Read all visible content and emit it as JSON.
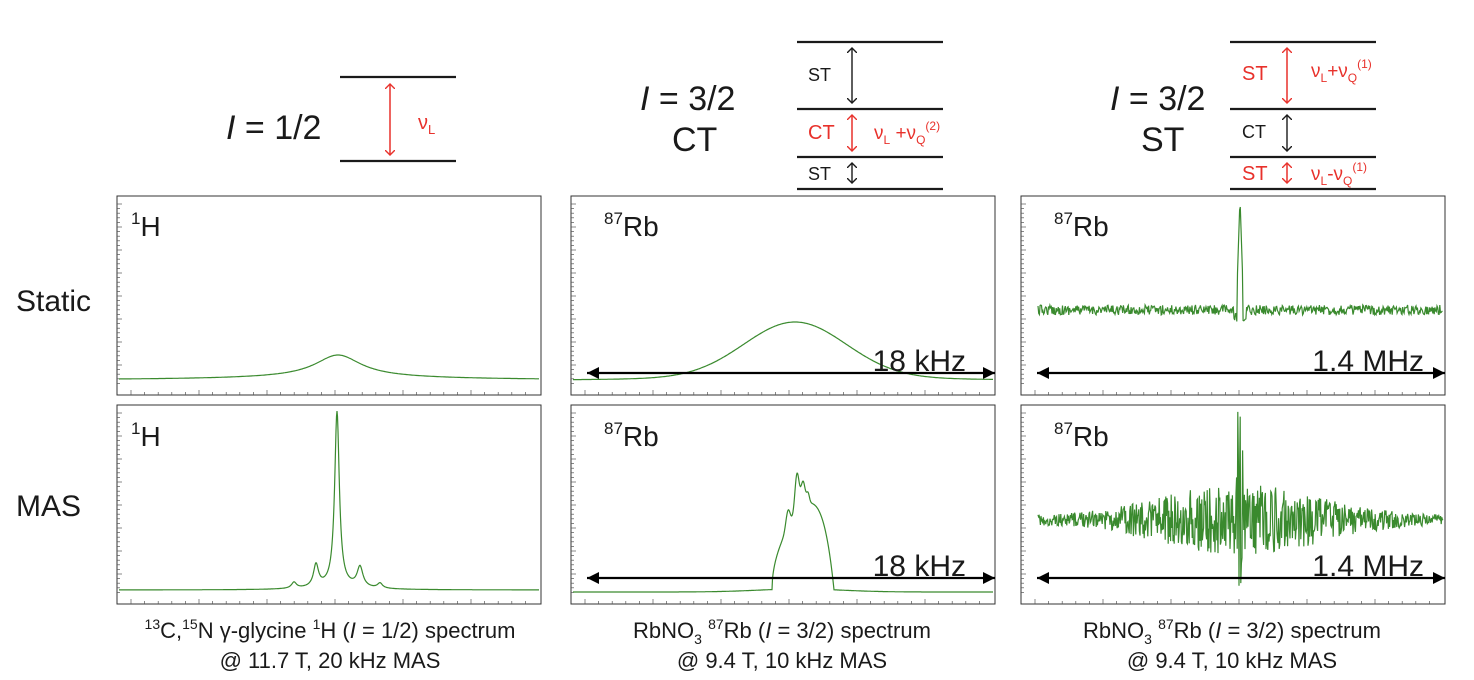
{
  "columns": [
    {
      "spin": "1/2",
      "transition_type": "",
      "energy_diagram": {
        "levels": 2,
        "transitions": [
          {
            "label": "",
            "freq_base": "ν",
            "freq_sub": "L",
            "freq_rest": "",
            "highlight": true
          }
        ]
      },
      "nucleus_mass": "1",
      "nucleus_element": "H",
      "width_label": "",
      "caption_line1": {
        "pre_sup1": "13",
        "text1": "C,",
        "sup2": "15",
        "text2": "N γ-glycine ",
        "sup3": "1",
        "text3": "H (",
        "italic": "I",
        "text4": " = 1/2) spectrum"
      },
      "caption_line2": "@ 11.7 T, 20 kHz MAS"
    },
    {
      "spin": "3/2",
      "transition_type": "CT",
      "energy_diagram": {
        "levels": 4,
        "transitions": [
          {
            "label": "ST",
            "highlight": false
          },
          {
            "label": "CT",
            "highlight": true,
            "formula": "ν_L +ν_Q^(2)"
          },
          {
            "label": "ST",
            "highlight": false
          }
        ]
      },
      "nucleus_mass": "87",
      "nucleus_element": "Rb",
      "width_label": "18 kHz",
      "caption_line1": {
        "text1": "RbNO",
        "sub1": "3",
        "sup2": "87",
        "text2": "Rb (",
        "italic": "I",
        "text3": " = 3/2) spectrum"
      },
      "caption_line2": "@ 9.4 T, 10 kHz MAS"
    },
    {
      "spin": "3/2",
      "transition_type": "ST",
      "energy_diagram": {
        "levels": 4,
        "transitions": [
          {
            "label": "ST",
            "highlight": true,
            "formula": "ν_L+ν_Q^(1)"
          },
          {
            "label": "CT",
            "highlight": false
          },
          {
            "label": "ST",
            "highlight": true,
            "formula": "ν_L-ν_Q^(1)"
          }
        ]
      },
      "nucleus_mass": "87",
      "nucleus_element": "Rb",
      "width_label": "1.4 MHz",
      "caption_line1": {
        "text1": "RbNO",
        "sub1": "3",
        "sup2": "87",
        "text2": "Rb (",
        "italic": "I",
        "text3": " = 3/2) spectrum"
      },
      "caption_line2": "@ 9.4 T, 10 kHz MAS"
    }
  ],
  "rows": [
    {
      "label": "Static"
    },
    {
      "label": "MAS"
    }
  ],
  "spin_prefix": "I",
  "spin_equals": " = ",
  "colors": {
    "highlight": "#e8312b",
    "spectrum": "#3a8a2e",
    "text": "#1a1a1a"
  }
}
